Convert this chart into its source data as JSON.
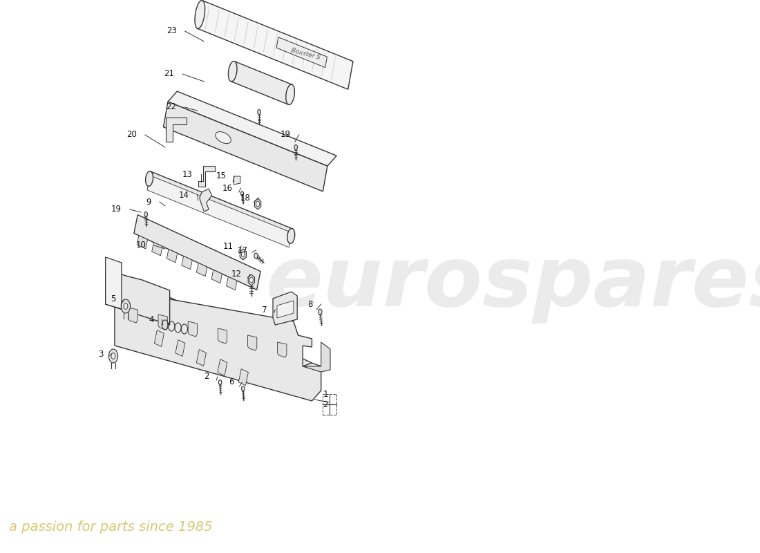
{
  "background_color": "#ffffff",
  "watermark_text1": "eurospares",
  "watermark_text2": "a passion for parts since 1985",
  "line_color": "#333333",
  "label_color": "#111111",
  "part_fill": "#f2f2f2",
  "part_fill_dark": "#e0e0e0",
  "part_fill_mid": "#e8e8e8"
}
